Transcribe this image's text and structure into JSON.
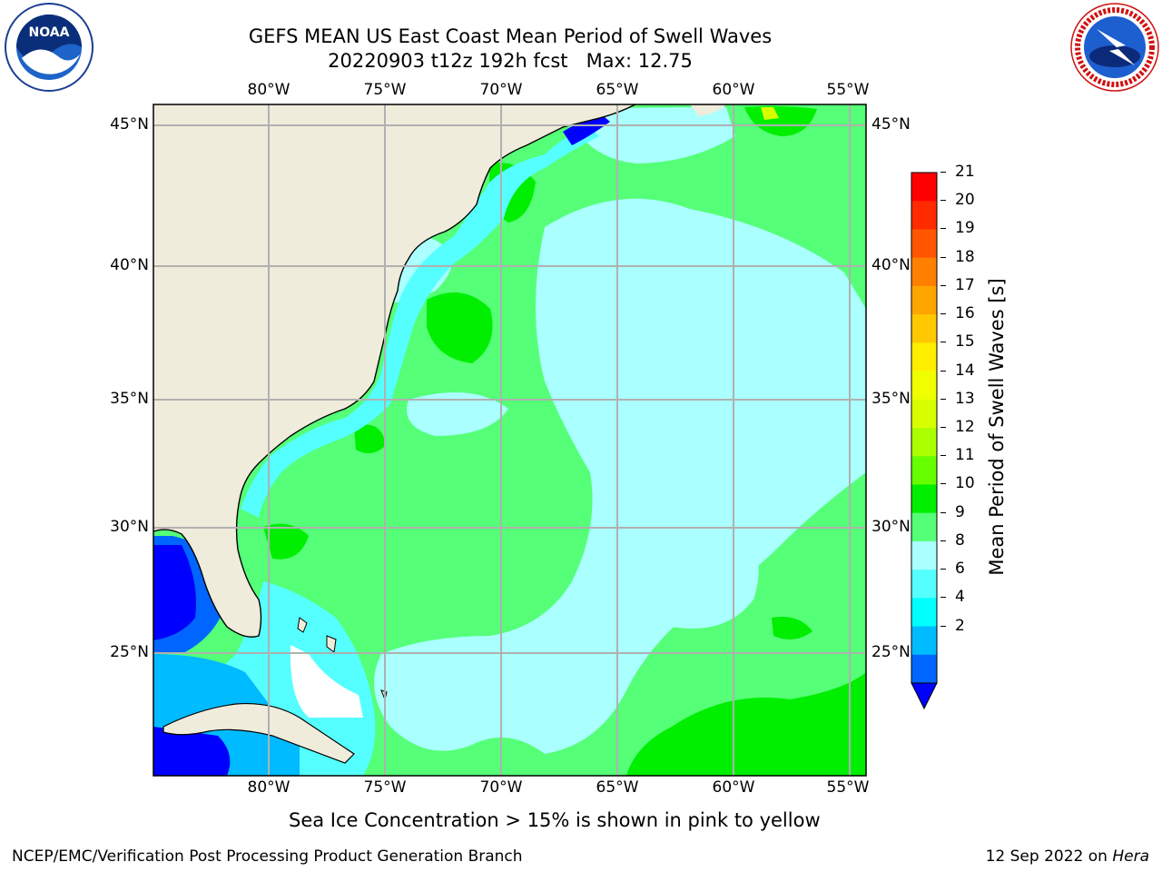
{
  "header": {
    "title_line1": "GEFS MEAN US East Coast Mean Period of Swell Waves",
    "title_line2": "20220903 t12z 192h fcst   Max: 12.75"
  },
  "logos": {
    "left": {
      "name": "NOAA",
      "text": "NOAA",
      "ring_text": "NATIONAL OCEANIC AND ATMOSPHERIC ADMINISTRATION · U.S. DEPARTMENT OF COMMERCE"
    },
    "right": {
      "name": "National Weather Service",
      "ring_text": "NATIONAL WEATHER SERVICE"
    }
  },
  "map": {
    "lon_labels": [
      "80°W",
      "75°W",
      "70°W",
      "65°W",
      "60°W",
      "55°W"
    ],
    "lat_labels": [
      "45°N",
      "40°N",
      "35°N",
      "30°N",
      "25°N"
    ],
    "colors": {
      "land": "#efecdc",
      "grid": "#b0b0b0"
    }
  },
  "colorbar": {
    "label": "Mean Period of Swell Waves [s]",
    "ticks": [
      "21",
      "20",
      "19",
      "18",
      "17",
      "16",
      "15",
      "14",
      "13",
      "12",
      "11",
      "10",
      "9",
      "8",
      "6",
      "4",
      "2"
    ],
    "colors_top_to_bottom": [
      "#ff0000",
      "#ff2a00",
      "#ff5500",
      "#ff8000",
      "#ffa500",
      "#ffc800",
      "#ffee00",
      "#f0ff00",
      "#d8ff00",
      "#aaff00",
      "#66ff00",
      "#00ee00",
      "#55ff77",
      "#aaffff",
      "#55ffff",
      "#00ffff",
      "#00bbff",
      "#0066ff"
    ],
    "extend_color": "#0000ff"
  },
  "footer": {
    "note": "Sea Ice Concentration > 15% is shown in pink to yellow",
    "left": "NCEP/EMC/Verification Post Processing Product Generation Branch",
    "right_prefix": "12 Sep 2022 on ",
    "right_machine": "Hera"
  }
}
